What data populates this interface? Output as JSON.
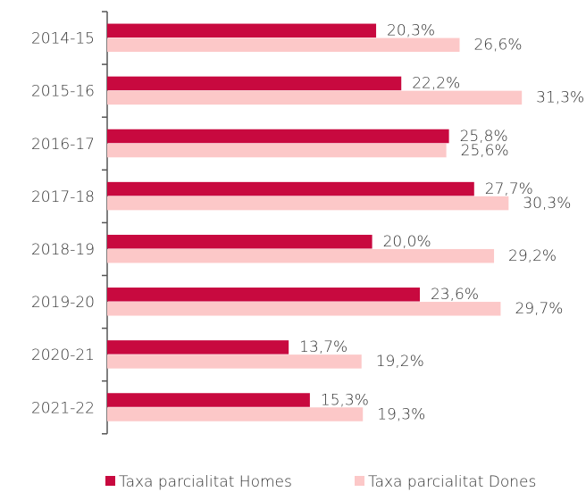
{
  "chart_data": {
    "type": "hbar",
    "categories": [
      "2014-15",
      "2015-16",
      "2016-17",
      "2017-18",
      "2018-19",
      "2019-20",
      "2020-21",
      "2021-22"
    ],
    "series": [
      {
        "name": "Taxa parcialitat Homes",
        "color": "#c8093f",
        "values": [
          20.3,
          22.2,
          25.8,
          27.7,
          20.0,
          23.6,
          13.7,
          15.3
        ],
        "value_labels": [
          "20,3%",
          "22,2%",
          "25,8%",
          "27,7%",
          "20,0%",
          "23,6%",
          "13,7%",
          "15,3%"
        ]
      },
      {
        "name": "Taxa parcialitat Dones",
        "color": "#fcc8c8",
        "values": [
          26.6,
          31.3,
          25.6,
          30.3,
          29.2,
          29.7,
          19.2,
          19.3
        ],
        "value_labels": [
          "26,6%",
          "31,3%",
          "25,6%",
          "30,3%",
          "29,2%",
          "29,7%",
          "19,2%",
          "19,3%"
        ]
      }
    ],
    "legend": "bottom"
  }
}
